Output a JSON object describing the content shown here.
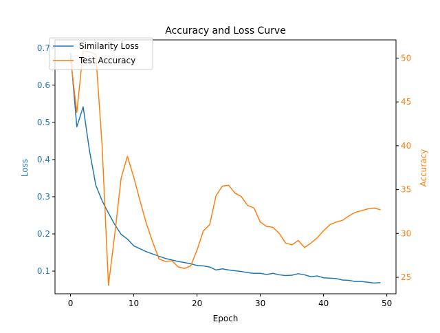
{
  "chart_data": {
    "type": "line",
    "title": "Accuracy and Loss Curve",
    "xlabel": "Epoch",
    "ylabel_left": "Loss",
    "ylabel_right": "Accuracy",
    "xlim": [
      -2.45,
      51.45
    ],
    "ylim_left": [
      0.039,
      0.7218
    ],
    "ylim_right": [
      23.12,
      52.07
    ],
    "xticks": [
      0,
      10,
      20,
      30,
      40,
      50
    ],
    "yticks_left": [
      0.1,
      0.2,
      0.3,
      0.4,
      0.5,
      0.6,
      0.7
    ],
    "yticks_right": [
      25,
      30,
      35,
      40,
      45,
      50
    ],
    "grid": false,
    "legend_position": "top-left",
    "x": [
      0,
      1,
      2,
      3,
      4,
      5,
      6,
      7,
      8,
      9,
      10,
      11,
      12,
      13,
      14,
      15,
      16,
      17,
      18,
      19,
      20,
      21,
      22,
      23,
      24,
      25,
      26,
      27,
      28,
      29,
      30,
      31,
      32,
      33,
      34,
      35,
      36,
      37,
      38,
      39,
      40,
      41,
      42,
      43,
      44,
      45,
      46,
      47,
      48,
      49
    ],
    "series": [
      {
        "name": "Similarity Loss",
        "axis": "left",
        "color": "#1f77b4",
        "values": [
          0.687,
          0.488,
          0.542,
          0.424,
          0.331,
          0.289,
          0.256,
          0.225,
          0.199,
          0.186,
          0.168,
          0.16,
          0.152,
          0.146,
          0.14,
          0.134,
          0.13,
          0.126,
          0.123,
          0.12,
          0.115,
          0.114,
          0.111,
          0.103,
          0.106,
          0.103,
          0.101,
          0.099,
          0.096,
          0.094,
          0.094,
          0.091,
          0.094,
          0.09,
          0.088,
          0.089,
          0.093,
          0.09,
          0.085,
          0.087,
          0.082,
          0.081,
          0.08,
          0.076,
          0.075,
          0.072,
          0.072,
          0.07,
          0.068,
          0.069
        ]
      },
      {
        "name": "Test Accuracy",
        "axis": "right",
        "color": "#ff7f0e",
        "values": [
          50.0,
          43.8,
          50.8,
          50.7,
          50.4,
          40.0,
          24.1,
          29.9,
          36.3,
          38.8,
          36.4,
          33.7,
          31.1,
          29.0,
          27.1,
          26.8,
          26.9,
          26.2,
          26.0,
          26.3,
          28.1,
          30.3,
          31.0,
          34.3,
          35.4,
          35.5,
          34.6,
          34.2,
          33.2,
          32.9,
          31.3,
          30.8,
          30.7,
          30.0,
          28.9,
          28.7,
          29.2,
          28.4,
          28.9,
          29.5,
          30.3,
          31.0,
          31.3,
          31.5,
          32.0,
          32.4,
          32.6,
          32.8,
          32.9,
          32.7
        ]
      }
    ]
  }
}
